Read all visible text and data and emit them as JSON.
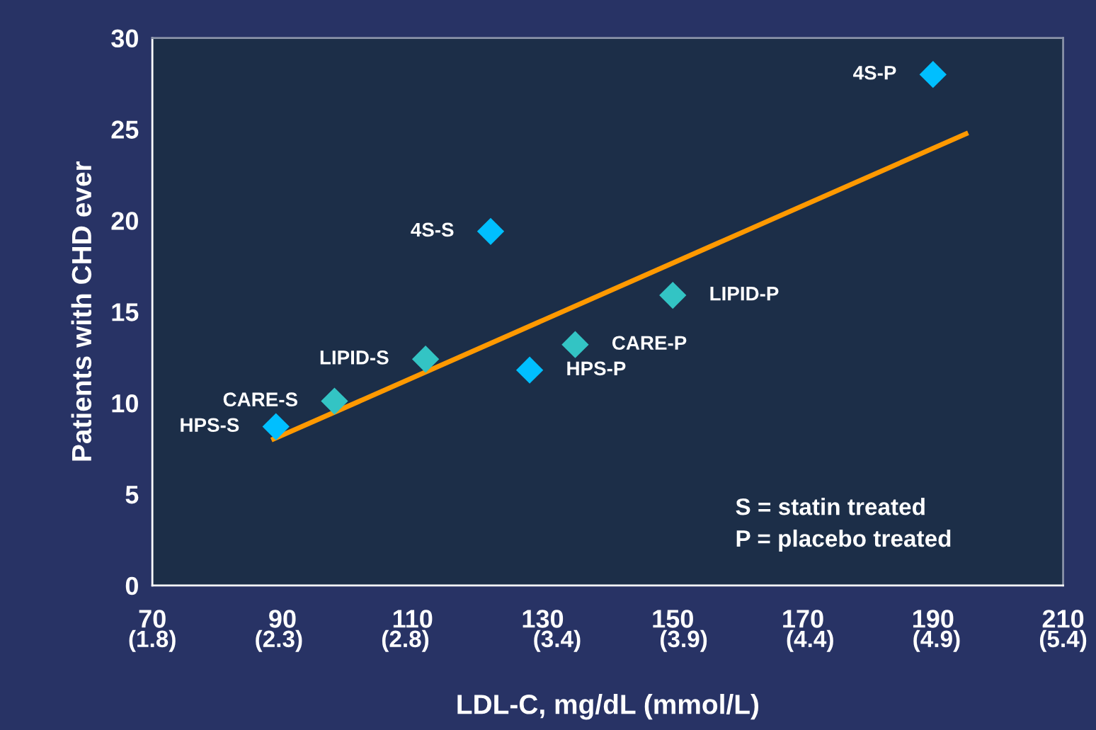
{
  "chart_data": {
    "type": "scatter",
    "xlabel": "LDL-C, mg/dL (mmol/L)",
    "ylabel": "Patients with CHD ever",
    "series": [
      {
        "x": [
          89,
          98,
          112,
          122,
          128,
          135,
          150,
          190
        ],
        "values": [
          8.7,
          10.1,
          12.4,
          19.4,
          11.8,
          13.2,
          15.9,
          28.0
        ],
        "colors": [
          "#00bfff",
          "#33c4c4",
          "#33c4c4",
          "#00bfff",
          "#00bfff",
          "#33c4c4",
          "#33c4c4",
          "#00bfff"
        ],
        "marker": "diamond"
      },
      {
        "type": "line",
        "x": [
          88.3,
          195.4
        ],
        "values": [
          7.97,
          24.8
        ],
        "color": "#ff9900",
        "line_style": "solid"
      }
    ],
    "annotations": [
      {
        "text": "HPS-S",
        "x": 89,
        "y": 8.7
      },
      {
        "text": "CARE-S",
        "x": 98,
        "y": 10.1
      },
      {
        "text": "LIPID-S",
        "x": 112,
        "y": 12.4
      },
      {
        "text": "4S-S",
        "x": 122,
        "y": 19.4
      },
      {
        "text": "HPS-P",
        "x": 128,
        "y": 11.8
      },
      {
        "text": "CARE-P",
        "x": 135,
        "y": 13.2
      },
      {
        "text": "LIPID-P",
        "x": 150,
        "y": 15.9
      },
      {
        "text": "4S-P",
        "x": 190,
        "y": 28.0
      },
      "S = statin treated",
      "P = placebo treated"
    ],
    "xlim": [
      70,
      210
    ],
    "ylim": [
      0,
      30
    ],
    "xticks": [
      70,
      90,
      110,
      130,
      150,
      170,
      190,
      210
    ],
    "x2lim": [
      1.8,
      5.4
    ],
    "x2ticks": [
      {
        "value": 1.8,
        "label": "(1.8)"
      },
      {
        "value": 2.3,
        "label": "(2.3)"
      },
      {
        "value": 2.8,
        "label": "(2.8)"
      },
      {
        "value": 3.4,
        "label": "(3.4)"
      },
      {
        "value": 3.9,
        "label": "(3.9)"
      },
      {
        "value": 4.4,
        "label": "(4.4)"
      },
      {
        "value": 4.9,
        "label": "(4.9)"
      },
      {
        "value": 5.4,
        "label": "(5.4)"
      }
    ],
    "yticks": [
      0,
      5,
      10,
      15,
      20,
      25,
      30
    ],
    "grid": false,
    "legend": false
  }
}
